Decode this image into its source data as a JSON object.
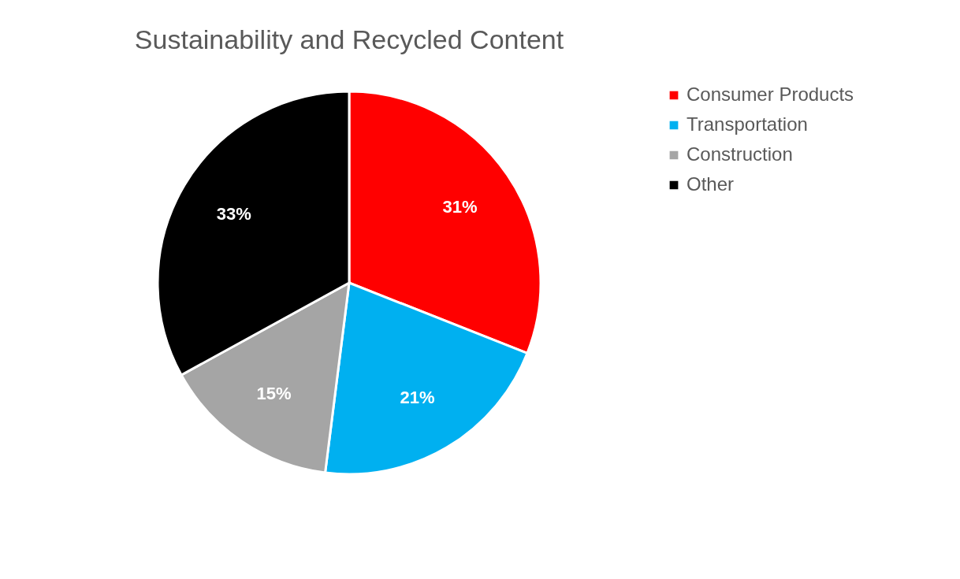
{
  "chart_data": {
    "type": "pie",
    "title": "Sustainability and Recycled Content",
    "categories": [
      "Consumer Products",
      "Transportation",
      "Construction",
      "Other"
    ],
    "values": [
      31,
      21,
      15,
      33
    ],
    "value_labels": [
      "31%",
      "21%",
      "15%",
      "33%"
    ],
    "colors": [
      "#ff0000",
      "#00b0f0",
      "#a5a5a5",
      "#000000"
    ],
    "legend": "right"
  }
}
